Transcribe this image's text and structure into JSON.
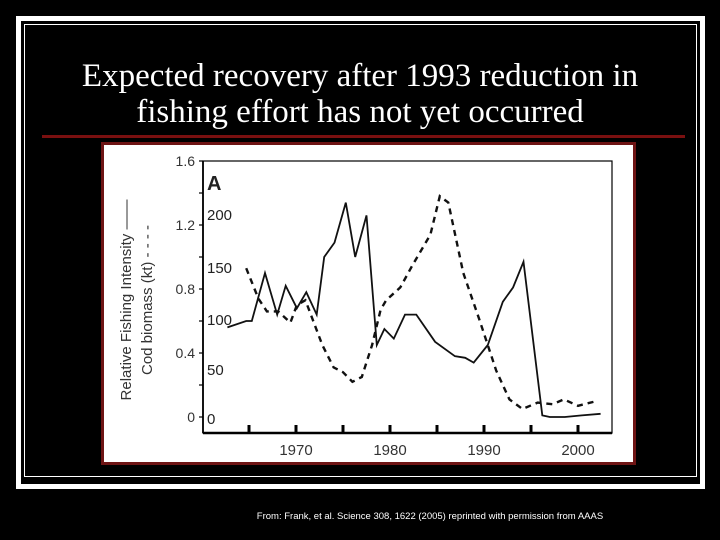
{
  "slide": {
    "title_line1": "Expected recovery after 1993 reduction in",
    "title_line2": "fishing effort has not yet occurred",
    "credit": "From: Frank, et al.  Science  308, 1622 (2005) reprinted with permission from AAAS"
  },
  "colors": {
    "background": "#000000",
    "frame": "#ffffff",
    "accent_rule": "#7a1010",
    "chart_border": "#6e1414"
  },
  "chart_data": {
    "type": "line",
    "panel_label": "A",
    "title": "",
    "xlabel": "",
    "ylabel": "Relative Fishing Intensity ——",
    "ylabel2": "Cod biomass (kt) - - - -",
    "x_ticks": [
      "1970",
      "1980",
      "1990",
      "2000"
    ],
    "xlim": [
      1962,
      2003
    ],
    "y_ticks_left": [
      "0",
      "0.4",
      "0.8",
      "1.2",
      "1.6"
    ],
    "ylim_left": [
      0,
      1.6
    ],
    "y_ticks_right": [
      "0",
      "50",
      "100",
      "150",
      "200"
    ],
    "ylim_right_note": "Cod biomass (kt), 0 to ~250 on inner axis",
    "grid": false,
    "legend": "none (line style noted in axis labels)",
    "series": [
      {
        "name": "Relative Fishing Intensity",
        "style": "solid",
        "axis": "left",
        "x": [
          1962.7,
          1964.7,
          1965.3,
          1966.7,
          1968.0,
          1968.9,
          1970.1,
          1971.1,
          1972.2,
          1973.0,
          1974.1,
          1975.3,
          1976.3,
          1977.5,
          1978.6,
          1979.4,
          1980.4,
          1981.6,
          1982.8,
          1984.8,
          1986.9,
          1988.0,
          1988.9,
          1990.4,
          1992.0,
          1993.1,
          1994.2,
          1996.2,
          1997.0,
          1998.6,
          2000.4,
          2002.4
        ],
        "values": [
          0.56,
          0.6,
          0.6,
          0.9,
          0.64,
          0.82,
          0.68,
          0.78,
          0.64,
          1.0,
          1.09,
          1.34,
          1.0,
          1.26,
          0.45,
          0.55,
          0.49,
          0.64,
          0.64,
          0.47,
          0.38,
          0.37,
          0.34,
          0.45,
          0.72,
          0.81,
          0.97,
          0.01,
          0.0,
          0.0,
          0.01,
          0.02
        ]
      },
      {
        "name": "Cod biomass (kt)",
        "style": "dashed",
        "axis": "left-scaled",
        "x": [
          1964.7,
          1966.0,
          1966.9,
          1968.1,
          1969.4,
          1970.1,
          1971.0,
          1972.8,
          1974.0,
          1975.0,
          1976.0,
          1977.0,
          1978.1,
          1979.0,
          1979.6,
          1981.1,
          1982.4,
          1984.3,
          1985.3,
          1986.2,
          1987.8,
          1989.5,
          1991.3,
          1992.7,
          1994.1,
          1995.7,
          1997.3,
          1998.5,
          2000.0,
          2002.0
        ],
        "values": [
          0.93,
          0.74,
          0.66,
          0.66,
          0.59,
          0.7,
          0.73,
          0.45,
          0.31,
          0.28,
          0.22,
          0.25,
          0.45,
          0.67,
          0.73,
          0.81,
          0.95,
          1.14,
          1.38,
          1.34,
          0.9,
          0.61,
          0.29,
          0.11,
          0.05,
          0.09,
          0.08,
          0.11,
          0.07,
          0.1
        ]
      }
    ]
  }
}
